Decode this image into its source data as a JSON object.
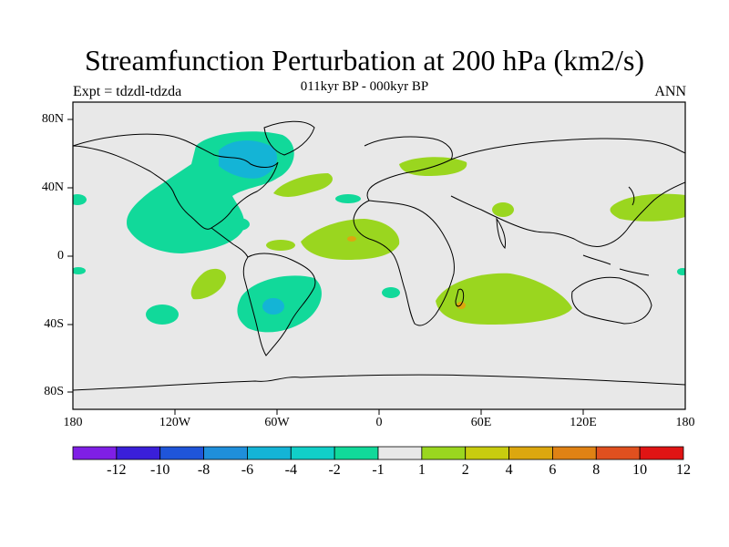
{
  "header": {
    "title": "Streamfunction Perturbation at 200 hPa (km2/s)",
    "subtitle": "011kyr BP - 000kyr BP",
    "left_label": "Expt = tdzdl-tdzda",
    "right_label": "ANN"
  },
  "map": {
    "projection": "cylindrical equidistant",
    "lat_labels": [
      "80N",
      "40N",
      "0",
      "40S",
      "80S"
    ],
    "lon_labels": [
      "180",
      "120W",
      "60W",
      "0",
      "60E",
      "120E",
      "180"
    ],
    "background_color": "#e8e8e8",
    "coastline_color": "#000000"
  },
  "colorbar": {
    "labels": [
      "-12",
      "-10",
      "-8",
      "-6",
      "-4",
      "-2",
      "-1",
      "1",
      "2",
      "4",
      "6",
      "8",
      "10",
      "12"
    ],
    "colors": [
      "#7f1fe6",
      "#3a1fd9",
      "#1f55d9",
      "#1f8fdb",
      "#14b4d6",
      "#11cfc8",
      "#11d99a",
      "#e8e8e8",
      "#9ad61f",
      "#c8cc0f",
      "#dca70f",
      "#e08214",
      "#e0501f",
      "#e01414"
    ]
  }
}
